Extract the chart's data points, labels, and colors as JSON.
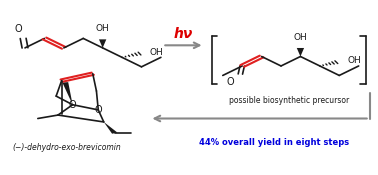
{
  "bg_color": "#ffffff",
  "arrow_color": "#888888",
  "red_color": "#e02020",
  "blue_color": "#0000dd",
  "black_color": "#1a1a1a",
  "hv_color": "#dd0000",
  "label_bottom_left": "(−)-dehydro-exo-brevicomin",
  "label_bottom_right": "44% overall yield in eight steps",
  "label_precursor": "possible biosynthetic precursor",
  "hv_label": "hν"
}
